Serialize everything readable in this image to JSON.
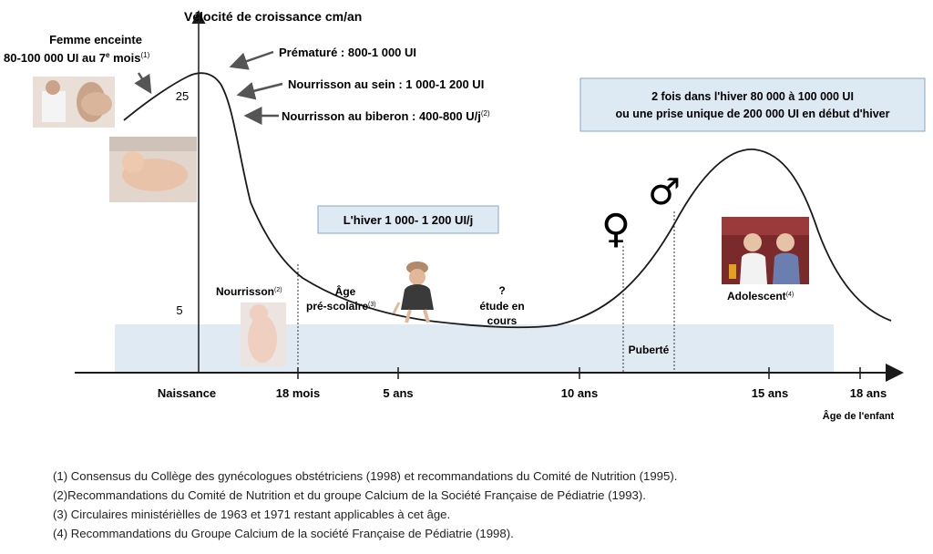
{
  "title": "Vélocité de croissance cm/an",
  "y_ticks": [
    "25",
    "5"
  ],
  "x_axis": {
    "ticks": [
      "Naissance",
      "18 mois",
      "5 ans",
      "10 ans",
      "15 ans",
      "18 ans"
    ],
    "label": "Âge de  l'enfant"
  },
  "annotations": {
    "femme_enceinte": {
      "line1": "Femme enceinte",
      "line2": "80-100 000 UI au 7",
      "sup_e": "e",
      "mois": " mois",
      "ref": "(1)"
    },
    "premature": "Prématuré : 800-1 000 UI",
    "nourrisson_sein": "Nourrisson au sein : 1 000-1 200 UI",
    "nourrisson_biberon": {
      "text": "Nourrisson au biberon : 400-800 U/j",
      "ref": "(2)"
    },
    "box_hiver_top": {
      "line1": "2 fois dans l'hiver 80 000 à 100 000 UI",
      "line2": "ou une prise unique de 200 000 UI en début d'hiver"
    },
    "box_hiver_mid": "L'hiver 1 000- 1 200 UI/j",
    "nourrisson": {
      "text": "Nourrisson",
      "ref": "(2)"
    },
    "age_prescolaire": {
      "line1": "Âge",
      "line2": "pré-scolaire",
      "ref": "(3)"
    },
    "etude": {
      "line1": "?",
      "line2": "étude en",
      "line3": "cours"
    },
    "puberte": "Puberté",
    "adolescent": {
      "text": "Adolescent",
      "ref": "(4)"
    },
    "female_symbol": "♀",
    "male_symbol": "♂"
  },
  "footnotes": [
    "(1) Consensus du Collège des gynécologues obstétriciens (1998) et recommandations du Comité de Nutrition (1995).",
    "(2)Recommandations du Comité de Nutrition et du groupe Calcium de la Société Française de Pédiatrie (1993).",
    "(3) Circulaires ministérièlles de 1963 et 1971 restant applicables à cet âge.",
    "(4) Recommandations du Groupe Calcium de la société Française de Pédiatrie (1998)."
  ],
  "colors": {
    "band": "#dfeaf3",
    "box_fill": "#dde9f3",
    "box_stroke": "#8aa6bf",
    "curve": "#1a1a1a",
    "arrow": "#555555"
  }
}
